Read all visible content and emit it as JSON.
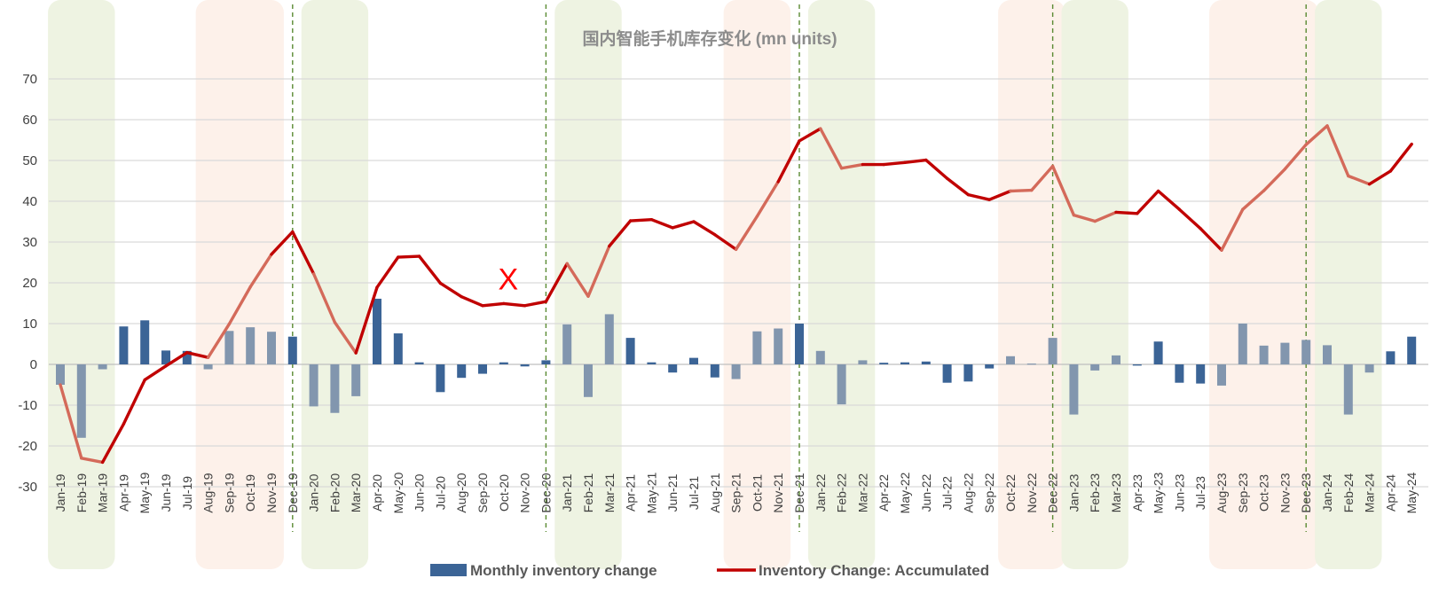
{
  "chart_data": {
    "type": "bar",
    "title": "国内智能手机库存变化 (mn units)",
    "xlabel": "",
    "ylabel": "",
    "ylim": [
      -30,
      70
    ],
    "yticks": [
      -30,
      -20,
      -10,
      0,
      10,
      20,
      30,
      40,
      50,
      60,
      70
    ],
    "grid": true,
    "legend_position": "bottom",
    "categories": [
      "Jan-19",
      "Feb-19",
      "Mar-19",
      "Apr-19",
      "May-19",
      "Jun-19",
      "Jul-19",
      "Aug-19",
      "Sep-19",
      "Oct-19",
      "Nov-19",
      "Dec-19",
      "Jan-20",
      "Feb-20",
      "Mar-20",
      "Apr-20",
      "May-20",
      "Jun-20",
      "Jul-20",
      "Aug-20",
      "Sep-20",
      "Oct-20",
      "Nov-20",
      "Dec-20",
      "Jan-21",
      "Feb-21",
      "Mar-21",
      "Apr-21",
      "May-21",
      "Jun-21",
      "Jul-21",
      "Aug-21",
      "Sep-21",
      "Oct-21",
      "Nov-21",
      "Dec-21",
      "Jan-22",
      "Feb-22",
      "Mar-22",
      "Apr-22",
      "May-22",
      "Jun-22",
      "Jul-22",
      "Aug-22",
      "Sep-22",
      "Oct-22",
      "Nov-22",
      "Dec-22",
      "Jan-23",
      "Feb-23",
      "Mar-23",
      "Apr-23",
      "May-23",
      "Jun-23",
      "Jul-23",
      "Aug-23",
      "Sep-23",
      "Oct-23",
      "Nov-23",
      "Dec-23",
      "Jan-24",
      "Feb-24",
      "Mar-24",
      "Apr-24",
      "May-24"
    ],
    "series": [
      {
        "name": "Monthly inventory change",
        "type": "bar",
        "color": "#3b6496",
        "highlight_color": "#8296ae",
        "values": [
          -5,
          -18,
          -1.2,
          9.3,
          10.8,
          3.4,
          3.3,
          -1.2,
          8.2,
          9.1,
          8,
          6.8,
          -10.3,
          -11.9,
          -7.8,
          16.1,
          7.6,
          0.5,
          -6.8,
          -3.3,
          -2.3,
          0.5,
          -0.5,
          1,
          9.8,
          -8,
          12.3,
          6.5,
          0.5,
          -2,
          1.6,
          -3.2,
          -3.6,
          8.1,
          8.8,
          10,
          3.3,
          -9.8,
          1,
          0.4,
          0.5,
          0.7,
          -4.5,
          -4.2,
          -1,
          2,
          0.2,
          6.5,
          -12.3,
          -1.5,
          2.2,
          -0.3,
          5.6,
          -4.5,
          -4.7,
          -5.2,
          10,
          4.6,
          5.3,
          6,
          4.7,
          -12.3,
          -2,
          3.2,
          6.8
        ]
      },
      {
        "name": "Inventory Change: Accumulated",
        "type": "line",
        "color": "#c00000",
        "highlight_color": "#d46a5a",
        "values": [
          -5,
          -23,
          -24,
          -14.6,
          -3.8,
          -0.4,
          2.9,
          1.7,
          9.9,
          19,
          27,
          32.5,
          22.2,
          10.3,
          2.8,
          18.9,
          26.3,
          26.5,
          19.9,
          16.6,
          14.4,
          14.9,
          14.4,
          15.4,
          24.7,
          16.7,
          29,
          35.2,
          35.5,
          33.5,
          35,
          31.8,
          28.2,
          36.3,
          44.8,
          54.8,
          57.8,
          48.1,
          49,
          49,
          49.5,
          50.1,
          45.6,
          41.6,
          40.4,
          42.5,
          42.7,
          48.6,
          36.6,
          35.1,
          37.3,
          37,
          42.5,
          38,
          33.3,
          28,
          38,
          42.6,
          47.9,
          53.9,
          58.5,
          46.2,
          44.2,
          47.4,
          54
        ]
      }
    ],
    "highlight_bands": [
      {
        "kind": "green",
        "from": "Jan-19",
        "to": "Mar-19"
      },
      {
        "kind": "orange",
        "from": "Aug-19",
        "to": "Nov-19"
      },
      {
        "kind": "green",
        "from": "Jan-20",
        "to": "Mar-20"
      },
      {
        "kind": "green",
        "from": "Jan-21",
        "to": "Mar-21"
      },
      {
        "kind": "orange",
        "from": "Sep-21",
        "to": "Nov-21"
      },
      {
        "kind": "green",
        "from": "Jan-22",
        "to": "Mar-22"
      },
      {
        "kind": "orange",
        "from": "Oct-22",
        "to": "Dec-22"
      },
      {
        "kind": "green",
        "from": "Jan-23",
        "to": "Mar-23"
      },
      {
        "kind": "orange",
        "from": "Aug-23",
        "to": "Dec-23"
      },
      {
        "kind": "green",
        "from": "Jan-24",
        "to": "Mar-24"
      }
    ],
    "band_colors": {
      "green": "#eef3e2",
      "orange": "#fdf1ea"
    },
    "year_dividers": [
      "Dec-19",
      "Dec-20",
      "Dec-21",
      "Dec-22",
      "Dec-23"
    ],
    "divider_color": "#5a8a32",
    "annotations": [
      {
        "text": "X",
        "x": "Oct-20",
        "y": 21,
        "color": "#ff0000"
      }
    ]
  }
}
